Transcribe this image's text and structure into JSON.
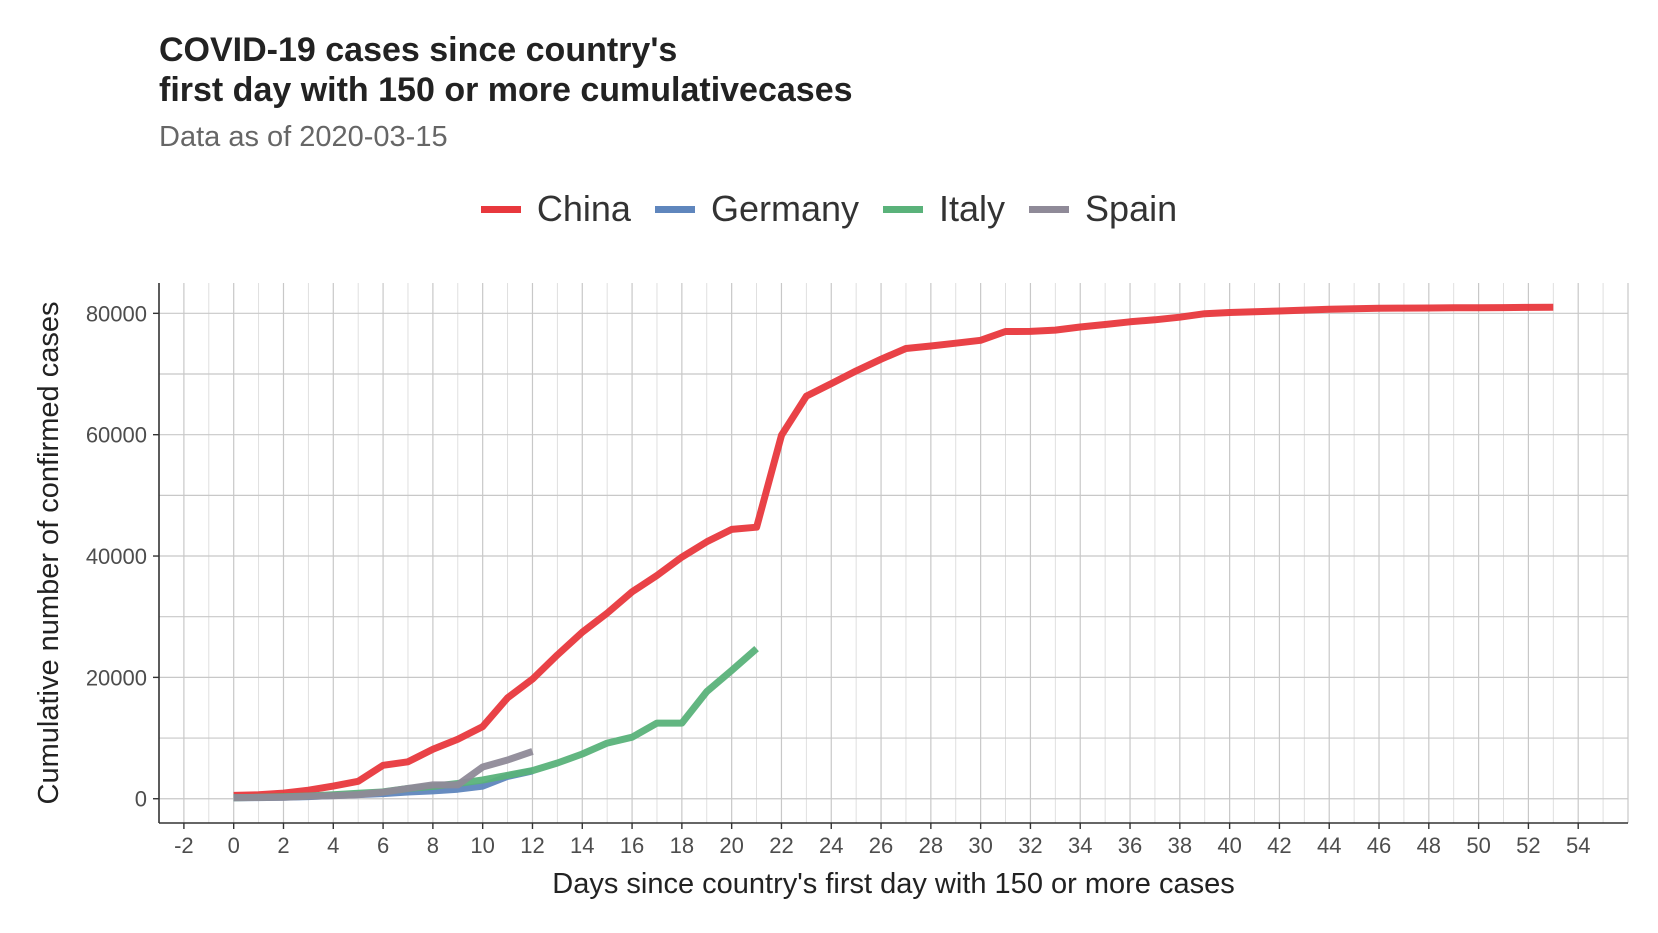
{
  "title_lines": [
    "COVID-19 cases since country's",
    "first day with 150 or more cumulativecases"
  ],
  "subtitle": "Data as of 2020-03-15",
  "chart_data": {
    "type": "line",
    "xlabel": "Days since country's first day with 150 or more cases",
    "ylabel": "Cumulative number of confirmed cases",
    "xlim": [
      -3,
      56
    ],
    "ylim": [
      -4000,
      85000
    ],
    "xticks": [
      -2,
      0,
      2,
      4,
      6,
      8,
      10,
      12,
      14,
      16,
      18,
      20,
      22,
      24,
      26,
      28,
      30,
      32,
      34,
      36,
      38,
      40,
      42,
      44,
      46,
      48,
      50,
      52,
      54
    ],
    "yticks": [
      0,
      20000,
      40000,
      60000,
      80000
    ],
    "grid": true,
    "legend_position": "top",
    "series": [
      {
        "name": "China",
        "color": "#e8383d",
        "x": [
          0,
          1,
          2,
          3,
          4,
          5,
          6,
          7,
          8,
          9,
          10,
          11,
          12,
          13,
          14,
          15,
          16,
          17,
          18,
          19,
          20,
          21,
          22,
          23,
          24,
          25,
          26,
          27,
          28,
          29,
          30,
          31,
          32,
          33,
          34,
          35,
          36,
          37,
          38,
          39,
          40,
          41,
          42,
          43,
          44,
          45,
          46,
          47,
          48,
          49,
          50,
          51,
          52,
          53
        ],
        "y": [
          548,
          643,
          920,
          1406,
          2075,
          2877,
          5509,
          6087,
          8141,
          9802,
          11891,
          16630,
          19716,
          23707,
          27440,
          30587,
          34110,
          36814,
          39829,
          42354,
          44386,
          44759,
          59895,
          66358,
          68413,
          70513,
          72434,
          74211,
          74619,
          75077,
          75550,
          77001,
          77022,
          77241,
          77754,
          78166,
          78600,
          78928,
          79356,
          79932,
          80136,
          80261,
          80386,
          80537,
          80690,
          80770,
          80823,
          80860,
          80887,
          80921,
          80932,
          80945,
          80977,
          81003
        ]
      },
      {
        "name": "Germany",
        "color": "#5f86bd",
        "x": [
          0,
          1,
          2,
          3,
          4,
          5,
          6,
          7,
          8,
          9,
          10,
          11,
          12
        ],
        "y": [
          150,
          188,
          240,
          349,
          534,
          684,
          847,
          1112,
          1296,
          1567,
          2078,
          3675,
          4585
        ]
      },
      {
        "name": "Italy",
        "color": "#5ab27a",
        "x": [
          0,
          1,
          2,
          3,
          4,
          5,
          6,
          7,
          8,
          9,
          10,
          11,
          12,
          13,
          14,
          15,
          16,
          17,
          18,
          19,
          20,
          21
        ],
        "y": [
          155,
          229,
          322,
          453,
          655,
          888,
          1128,
          1694,
          2036,
          2502,
          3089,
          3858,
          4636,
          5883,
          7375,
          9172,
          10149,
          12462,
          12462,
          17660,
          21157,
          24747
        ]
      },
      {
        "name": "Spain",
        "color": "#8f8a98",
        "x": [
          0,
          1,
          2,
          3,
          4,
          5,
          6,
          7,
          8,
          9,
          10,
          11,
          12
        ],
        "y": [
          151,
          198,
          259,
          400,
          500,
          673,
          1073,
          1695,
          2277,
          2277,
          5232,
          6391,
          7798
        ]
      }
    ]
  }
}
